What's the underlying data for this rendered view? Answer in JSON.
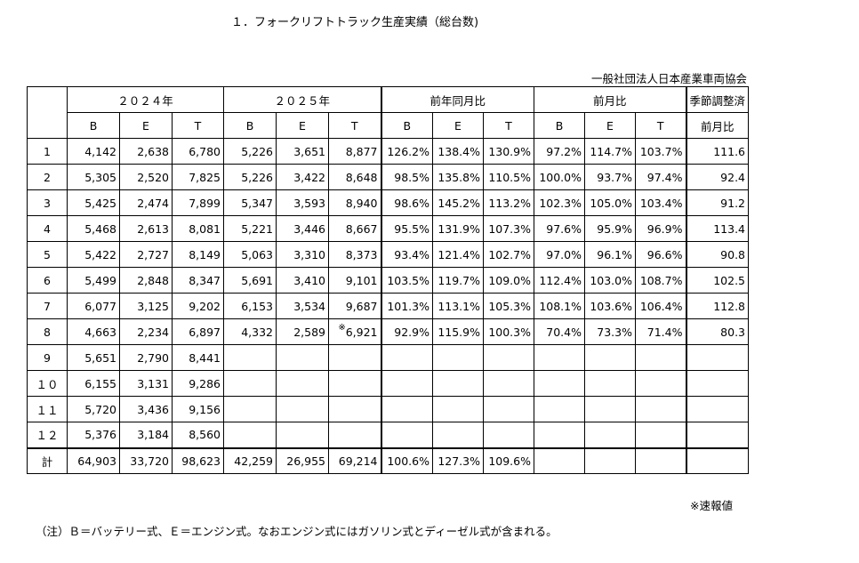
{
  "title": "１．フォークリフトトラック生産実績（総台数)",
  "organization": "一般社団法人日本産業車両協会",
  "header": {
    "group_2024": "２０２４年",
    "group_2025": "２０２５年",
    "group_yoy": "前年同月比",
    "group_mom": "前月比",
    "group_seasonal_line1": "季節調整済",
    "group_seasonal_line2": "前月比",
    "B": "B",
    "E": "E",
    "T": "T"
  },
  "rows": [
    {
      "m": "1",
      "b24": "4,142",
      "e24": "2,638",
      "t24": "6,780",
      "b25": "5,226",
      "e25": "3,651",
      "t25": "8,877",
      "t25_mark": "",
      "yb": "126.2%",
      "ye": "138.4%",
      "yt": "130.9%",
      "mb": "97.2%",
      "me": "114.7%",
      "mt": "103.7%",
      "s": "111.6"
    },
    {
      "m": "2",
      "b24": "5,305",
      "e24": "2,520",
      "t24": "7,825",
      "b25": "5,226",
      "e25": "3,422",
      "t25": "8,648",
      "t25_mark": "",
      "yb": "98.5%",
      "ye": "135.8%",
      "yt": "110.5%",
      "mb": "100.0%",
      "me": "93.7%",
      "mt": "97.4%",
      "s": "92.4"
    },
    {
      "m": "3",
      "b24": "5,425",
      "e24": "2,474",
      "t24": "7,899",
      "b25": "5,347",
      "e25": "3,593",
      "t25": "8,940",
      "t25_mark": "",
      "yb": "98.6%",
      "ye": "145.2%",
      "yt": "113.2%",
      "mb": "102.3%",
      "me": "105.0%",
      "mt": "103.4%",
      "s": "91.2"
    },
    {
      "m": "4",
      "b24": "5,468",
      "e24": "2,613",
      "t24": "8,081",
      "b25": "5,221",
      "e25": "3,446",
      "t25": "8,667",
      "t25_mark": "",
      "yb": "95.5%",
      "ye": "131.9%",
      "yt": "107.3%",
      "mb": "97.6%",
      "me": "95.9%",
      "mt": "96.9%",
      "s": "113.4"
    },
    {
      "m": "5",
      "b24": "5,422",
      "e24": "2,727",
      "t24": "8,149",
      "b25": "5,063",
      "e25": "3,310",
      "t25": "8,373",
      "t25_mark": "",
      "yb": "93.4%",
      "ye": "121.4%",
      "yt": "102.7%",
      "mb": "97.0%",
      "me": "96.1%",
      "mt": "96.6%",
      "s": "90.8"
    },
    {
      "m": "6",
      "b24": "5,499",
      "e24": "2,848",
      "t24": "8,347",
      "b25": "5,691",
      "e25": "3,410",
      "t25": "9,101",
      "t25_mark": "",
      "yb": "103.5%",
      "ye": "119.7%",
      "yt": "109.0%",
      "mb": "112.4%",
      "me": "103.0%",
      "mt": "108.7%",
      "s": "102.5"
    },
    {
      "m": "7",
      "b24": "6,077",
      "e24": "3,125",
      "t24": "9,202",
      "b25": "6,153",
      "e25": "3,534",
      "t25": "9,687",
      "t25_mark": "",
      "yb": "101.3%",
      "ye": "113.1%",
      "yt": "105.3%",
      "mb": "108.1%",
      "me": "103.6%",
      "mt": "106.4%",
      "s": "112.8"
    },
    {
      "m": "8",
      "b24": "4,663",
      "e24": "2,234",
      "t24": "6,897",
      "b25": "4,332",
      "e25": "2,589",
      "t25": "6,921",
      "t25_mark": "※",
      "yb": "92.9%",
      "ye": "115.9%",
      "yt": "100.3%",
      "mb": "70.4%",
      "me": "73.3%",
      "mt": "71.4%",
      "s": "80.3"
    },
    {
      "m": "9",
      "b24": "5,651",
      "e24": "2,790",
      "t24": "8,441",
      "b25": "",
      "e25": "",
      "t25": "",
      "t25_mark": "",
      "yb": "",
      "ye": "",
      "yt": "",
      "mb": "",
      "me": "",
      "mt": "",
      "s": ""
    },
    {
      "m": "１０",
      "b24": "6,155",
      "e24": "3,131",
      "t24": "9,286",
      "b25": "",
      "e25": "",
      "t25": "",
      "t25_mark": "",
      "yb": "",
      "ye": "",
      "yt": "",
      "mb": "",
      "me": "",
      "mt": "",
      "s": ""
    },
    {
      "m": "１１",
      "b24": "5,720",
      "e24": "3,436",
      "t24": "9,156",
      "b25": "",
      "e25": "",
      "t25": "",
      "t25_mark": "",
      "yb": "",
      "ye": "",
      "yt": "",
      "mb": "",
      "me": "",
      "mt": "",
      "s": ""
    },
    {
      "m": "１２",
      "b24": "5,376",
      "e24": "3,184",
      "t24": "8,560",
      "b25": "",
      "e25": "",
      "t25": "",
      "t25_mark": "",
      "yb": "",
      "ye": "",
      "yt": "",
      "mb": "",
      "me": "",
      "mt": "",
      "s": ""
    }
  ],
  "total": {
    "m": "計",
    "b24": "64,903",
    "e24": "33,720",
    "t24": "98,623",
    "b25": "42,259",
    "e25": "26,955",
    "t25": "69,214",
    "yb": "100.6%",
    "ye": "127.3%",
    "yt": "109.6%"
  },
  "note_mark": "※速報値",
  "footnote": "（注）Ｂ＝バッテリー式、Ｅ＝エンジン式。なおエンジン式にはガソリン式とディーゼル式が含まれる。"
}
